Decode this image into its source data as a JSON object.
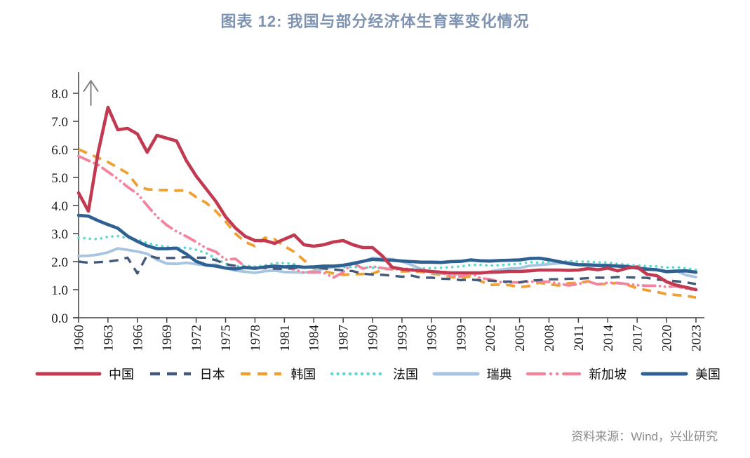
{
  "title": "图表  12: 我国与部分经济体生育率变化情况",
  "source": "资料来源：Wind，兴业研究",
  "chart_data": {
    "type": "line",
    "title": "图表 12: 我国与部分经济体生育率变化情况",
    "xlabel": "",
    "ylabel": "",
    "ylim": [
      0,
      8
    ],
    "grid": false,
    "legend_position": "bottom",
    "y_axis_arrow": "↑",
    "ytick_labels": [
      "0.0",
      "1.0",
      "2.0",
      "3.0",
      "4.0",
      "5.0",
      "6.0",
      "7.0",
      "8.0"
    ],
    "xtick_years": [
      1960,
      1963,
      1966,
      1969,
      1972,
      1975,
      1978,
      1981,
      1984,
      1987,
      1990,
      1993,
      1996,
      1999,
      2002,
      2005,
      2008,
      2011,
      2014,
      2017,
      2020,
      2023
    ],
    "years": [
      1960,
      1961,
      1962,
      1963,
      1964,
      1965,
      1966,
      1967,
      1968,
      1969,
      1970,
      1971,
      1972,
      1973,
      1974,
      1975,
      1976,
      1977,
      1978,
      1979,
      1980,
      1981,
      1982,
      1983,
      1984,
      1985,
      1986,
      1987,
      1988,
      1989,
      1990,
      1991,
      1992,
      1993,
      1994,
      1995,
      1996,
      1997,
      1998,
      1999,
      2000,
      2001,
      2002,
      2003,
      2004,
      2005,
      2006,
      2007,
      2008,
      2009,
      2010,
      2011,
      2012,
      2013,
      2014,
      2015,
      2016,
      2017,
      2018,
      2019,
      2020,
      2021,
      2022,
      2023
    ],
    "series": [
      {
        "key": "china",
        "name": "中国",
        "color": "#c23a52",
        "style": "solid",
        "values": [
          4.45,
          3.8,
          5.9,
          7.5,
          6.7,
          6.75,
          6.55,
          5.9,
          6.5,
          6.4,
          6.3,
          5.6,
          5.05,
          4.6,
          4.15,
          3.6,
          3.2,
          2.9,
          2.75,
          2.75,
          2.65,
          2.8,
          2.95,
          2.6,
          2.55,
          2.6,
          2.7,
          2.75,
          2.6,
          2.5,
          2.5,
          2.2,
          1.8,
          1.73,
          1.7,
          1.68,
          1.65,
          1.62,
          1.6,
          1.6,
          1.6,
          1.6,
          1.62,
          1.63,
          1.65,
          1.65,
          1.67,
          1.7,
          1.7,
          1.7,
          1.69,
          1.7,
          1.75,
          1.71,
          1.77,
          1.67,
          1.77,
          1.81,
          1.55,
          1.5,
          1.28,
          1.16,
          1.08,
          1.0
        ]
      },
      {
        "key": "japan",
        "name": "日本",
        "color": "#445878",
        "style": "dash",
        "values": [
          2.0,
          1.96,
          1.98,
          2.0,
          2.05,
          2.14,
          1.58,
          2.23,
          2.13,
          2.13,
          2.13,
          2.16,
          2.14,
          2.14,
          2.05,
          1.91,
          1.85,
          1.8,
          1.79,
          1.77,
          1.75,
          1.74,
          1.77,
          1.8,
          1.81,
          1.76,
          1.72,
          1.69,
          1.66,
          1.57,
          1.54,
          1.53,
          1.5,
          1.46,
          1.5,
          1.42,
          1.43,
          1.39,
          1.38,
          1.34,
          1.36,
          1.33,
          1.32,
          1.29,
          1.29,
          1.26,
          1.32,
          1.34,
          1.37,
          1.37,
          1.39,
          1.39,
          1.41,
          1.43,
          1.42,
          1.45,
          1.44,
          1.43,
          1.42,
          1.36,
          1.33,
          1.3,
          1.26,
          1.2
        ]
      },
      {
        "key": "korea",
        "name": "韩国",
        "color": "#f0a033",
        "style": "dash",
        "values": [
          6.0,
          5.85,
          5.7,
          5.55,
          5.35,
          5.15,
          4.7,
          4.58,
          4.55,
          4.55,
          4.53,
          4.54,
          4.3,
          4.1,
          3.8,
          3.43,
          3.0,
          2.7,
          2.55,
          2.85,
          2.8,
          2.55,
          2.35,
          2.05,
          1.76,
          1.66,
          1.58,
          1.53,
          1.55,
          1.56,
          1.57,
          1.71,
          1.76,
          1.65,
          1.66,
          1.63,
          1.57,
          1.54,
          1.45,
          1.42,
          1.48,
          1.31,
          1.17,
          1.18,
          1.16,
          1.09,
          1.13,
          1.25,
          1.19,
          1.15,
          1.23,
          1.24,
          1.3,
          1.19,
          1.21,
          1.24,
          1.17,
          1.05,
          0.98,
          0.92,
          0.84,
          0.81,
          0.78,
          0.72
        ]
      },
      {
        "key": "france",
        "name": "法国",
        "color": "#5bd9ce",
        "style": "dot",
        "values": [
          2.85,
          2.82,
          2.8,
          2.89,
          2.91,
          2.84,
          2.79,
          2.66,
          2.58,
          2.53,
          2.48,
          2.5,
          2.42,
          2.31,
          2.11,
          1.93,
          1.83,
          1.86,
          1.82,
          1.86,
          1.95,
          1.95,
          1.91,
          1.78,
          1.8,
          1.81,
          1.83,
          1.8,
          1.81,
          1.79,
          1.78,
          1.77,
          1.78,
          1.75,
          1.74,
          1.76,
          1.77,
          1.78,
          1.8,
          1.83,
          1.88,
          1.88,
          1.86,
          1.87,
          1.9,
          1.92,
          1.98,
          1.96,
          1.99,
          1.99,
          2.02,
          2.0,
          2.0,
          1.97,
          1.97,
          1.92,
          1.89,
          1.86,
          1.84,
          1.83,
          1.79,
          1.8,
          1.76,
          1.7
        ]
      },
      {
        "key": "sweden",
        "name": "瑞典",
        "color": "#a7c5e1",
        "style": "solid",
        "values": [
          2.2,
          2.21,
          2.25,
          2.33,
          2.47,
          2.42,
          2.36,
          2.28,
          2.07,
          1.93,
          1.92,
          1.96,
          1.91,
          1.87,
          1.89,
          1.77,
          1.68,
          1.64,
          1.6,
          1.66,
          1.68,
          1.63,
          1.62,
          1.61,
          1.66,
          1.74,
          1.8,
          1.84,
          1.96,
          2.01,
          2.13,
          2.11,
          2.09,
          2.0,
          1.88,
          1.73,
          1.62,
          1.58,
          1.55,
          1.55,
          1.57,
          1.57,
          1.65,
          1.71,
          1.75,
          1.77,
          1.85,
          1.88,
          1.91,
          1.94,
          1.98,
          1.9,
          1.91,
          1.89,
          1.88,
          1.85,
          1.85,
          1.78,
          1.75,
          1.7,
          1.66,
          1.67,
          1.52,
          1.45
        ]
      },
      {
        "key": "singapore",
        "name": "新加坡",
        "color": "#f2849e",
        "style": "dash-dot-dot",
        "values": [
          5.76,
          5.6,
          5.45,
          5.2,
          4.95,
          4.66,
          4.42,
          4.0,
          3.6,
          3.3,
          3.07,
          2.9,
          2.7,
          2.48,
          2.35,
          2.07,
          2.1,
          1.82,
          1.79,
          1.79,
          1.82,
          1.81,
          1.72,
          1.61,
          1.62,
          1.61,
          1.43,
          1.62,
          1.96,
          1.75,
          1.83,
          1.77,
          1.72,
          1.74,
          1.71,
          1.67,
          1.66,
          1.61,
          1.48,
          1.47,
          1.6,
          1.41,
          1.37,
          1.27,
          1.26,
          1.26,
          1.28,
          1.29,
          1.28,
          1.22,
          1.15,
          1.2,
          1.29,
          1.19,
          1.25,
          1.24,
          1.2,
          1.16,
          1.14,
          1.14,
          1.1,
          1.12,
          1.04,
          0.97
        ]
      },
      {
        "key": "usa",
        "name": "美国",
        "color": "#2e6191",
        "style": "solid",
        "values": [
          3.65,
          3.62,
          3.46,
          3.32,
          3.19,
          2.91,
          2.72,
          2.56,
          2.46,
          2.46,
          2.48,
          2.27,
          2.01,
          1.88,
          1.84,
          1.77,
          1.74,
          1.79,
          1.76,
          1.81,
          1.84,
          1.81,
          1.83,
          1.8,
          1.81,
          1.84,
          1.84,
          1.87,
          1.93,
          2.01,
          2.08,
          2.06,
          2.05,
          2.02,
          2.0,
          1.98,
          1.98,
          1.97,
          2.0,
          2.01,
          2.06,
          2.03,
          2.02,
          2.04,
          2.05,
          2.06,
          2.11,
          2.12,
          2.07,
          2.0,
          1.93,
          1.89,
          1.88,
          1.86,
          1.86,
          1.84,
          1.82,
          1.77,
          1.73,
          1.71,
          1.64,
          1.66,
          1.67,
          1.62
        ]
      }
    ]
  }
}
